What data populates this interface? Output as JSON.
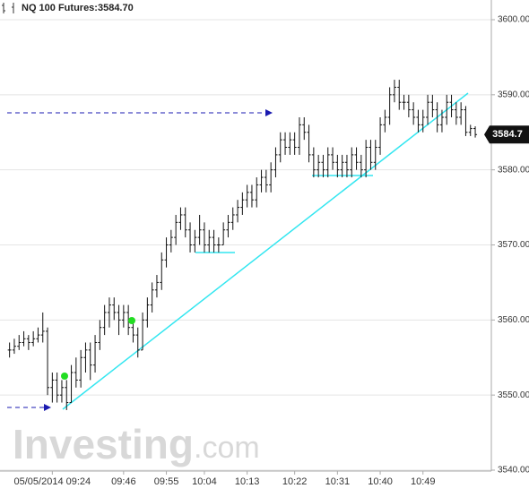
{
  "chart_data": {
    "type": "ohlc",
    "title": "NQ 100 Futures:3584.70",
    "last_price": 3584.7,
    "watermark": [
      "Investing",
      ".com"
    ],
    "categories": [
      null,
      null,
      null,
      null,
      null,
      null,
      null,
      null,
      null,
      "05/05/2014 09:24",
      null,
      null,
      null,
      null,
      null,
      null,
      null,
      null,
      null,
      null,
      null,
      null,
      null,
      null,
      "09:46",
      null,
      null,
      null,
      null,
      null,
      null,
      null,
      null,
      "09:55",
      null,
      null,
      null,
      null,
      null,
      null,
      null,
      "10:04",
      null,
      null,
      null,
      null,
      null,
      null,
      null,
      null,
      "10:13",
      null,
      null,
      null,
      null,
      null,
      null,
      null,
      null,
      null,
      "10:22",
      null,
      null,
      null,
      null,
      null,
      null,
      null,
      null,
      "10:31",
      null,
      null,
      null,
      null,
      null,
      null,
      null,
      null,
      "10:40",
      null,
      null,
      null,
      null,
      null,
      null,
      null,
      null,
      "10:49",
      null,
      null,
      null,
      null,
      null,
      null,
      null,
      null,
      null,
      null,
      null
    ],
    "open": [
      3556,
      3556,
      3556.5,
      3557,
      3557.5,
      3557,
      3557.5,
      3558,
      3558.5,
      3551,
      3552,
      3550,
      3551,
      3549,
      3553,
      3552,
      3555,
      3556,
      3554,
      3557,
      3559,
      3561,
      3562,
      3561,
      3560,
      3561,
      3559,
      3558,
      3556,
      3560,
      3562,
      3564,
      3565,
      3568,
      3570,
      3571,
      3573,
      3574,
      3572,
      3570,
      3571,
      3572,
      3570,
      3571,
      3570,
      3570,
      3572,
      3573,
      3574,
      3575,
      3576,
      3577,
      3576,
      3578,
      3579,
      3578,
      3580,
      3582,
      3584,
      3583,
      3584,
      3583,
      3586,
      3585,
      3582,
      3580,
      3581,
      3580,
      3582,
      3581,
      3580,
      3581,
      3580,
      3582,
      3581,
      3580,
      3583,
      3581,
      3583,
      3586,
      3587,
      3590,
      3591,
      3589,
      3589,
      3588,
      3587,
      3586,
      3587,
      3589,
      3588,
      3586,
      3587,
      3589,
      3588,
      3587,
      3588,
      3585,
      3585.5
    ],
    "high": [
      3557,
      3557.5,
      3558,
      3558.5,
      3558,
      3558.5,
      3559,
      3561,
      3559,
      3553,
      3553,
      3552,
      3552,
      3554,
      3555,
      3556,
      3557,
      3557,
      3558,
      3560,
      3562,
      3563,
      3563,
      3562,
      3562,
      3562,
      3560,
      3559,
      3561,
      3563,
      3565,
      3566,
      3569,
      3571,
      3572,
      3574,
      3575,
      3575,
      3573,
      3572,
      3574,
      3573,
      3572,
      3572,
      3571,
      3573,
      3574,
      3575,
      3576,
      3577,
      3578,
      3578,
      3579,
      3580,
      3580,
      3581,
      3583,
      3585,
      3585,
      3585,
      3585,
      3587,
      3587,
      3586,
      3583,
      3582,
      3582,
      3583,
      3583,
      3582,
      3582,
      3582,
      3583,
      3583,
      3582,
      3584,
      3584,
      3584,
      3587,
      3588,
      3591,
      3592,
      3592,
      3590,
      3590,
      3589,
      3588,
      3588,
      3590,
      3590,
      3589,
      3588,
      3590,
      3590,
      3589,
      3589,
      3588.5,
      3586,
      3585.8
    ],
    "low": [
      3555,
      3555.5,
      3556,
      3556.5,
      3556,
      3556.5,
      3557,
      3557,
      3550,
      3549,
      3549,
      3549,
      3548,
      3549,
      3551,
      3551,
      3553,
      3552,
      3553,
      3556,
      3558,
      3559,
      3560,
      3558,
      3559,
      3558,
      3557,
      3555,
      3556,
      3559,
      3561,
      3563,
      3564,
      3567,
      3569,
      3570,
      3572,
      3571,
      3569,
      3569,
      3570,
      3569,
      3569,
      3569,
      3569,
      3570,
      3571,
      3572,
      3573,
      3574,
      3575,
      3575,
      3575,
      3577,
      3577,
      3577,
      3579,
      3581,
      3582,
      3582,
      3582,
      3582,
      3584,
      3581,
      3579,
      3579,
      3579,
      3579,
      3580,
      3579,
      3579,
      3579,
      3579,
      3580,
      3579,
      3579,
      3580,
      3580,
      3582,
      3585,
      3586,
      3589,
      3588,
      3588,
      3587,
      3586,
      3585,
      3585,
      3586,
      3587,
      3585,
      3585,
      3586,
      3587,
      3586,
      3586,
      3584.5,
      3584.5,
      3584.3
    ],
    "close": [
      3556,
      3556.5,
      3557,
      3557.5,
      3557,
      3557.5,
      3558,
      3558.5,
      3551,
      3552,
      3550,
      3551,
      3549,
      3553,
      3552,
      3555,
      3556,
      3554,
      3557,
      3559,
      3561,
      3562,
      3561,
      3560,
      3561,
      3559,
      3558,
      3556,
      3560,
      3562,
      3564,
      3565,
      3568,
      3570,
      3571,
      3573,
      3574,
      3572,
      3570,
      3571,
      3572,
      3570,
      3571,
      3570,
      3570,
      3572,
      3573,
      3574,
      3575,
      3576,
      3577,
      3576,
      3578,
      3579,
      3578,
      3580,
      3582,
      3584,
      3583,
      3584,
      3583,
      3586,
      3585,
      3582,
      3580,
      3581,
      3580,
      3582,
      3581,
      3580,
      3581,
      3580,
      3582,
      3581,
      3580,
      3583,
      3581,
      3583,
      3586,
      3587,
      3590,
      3591,
      3589,
      3589,
      3588,
      3587,
      3586,
      3587,
      3589,
      3588,
      3586,
      3587,
      3589,
      3588,
      3587,
      3588,
      3585,
      3585.5,
      3584.7
    ],
    "color": "#111111",
    "ylim": [
      3540,
      3600
    ],
    "yticks": [
      {
        "value": 3540,
        "label": "3540.00"
      },
      {
        "value": 3550,
        "label": "3550.00"
      },
      {
        "value": 3560,
        "label": "3560.00"
      },
      {
        "value": 3570,
        "label": "3570.00"
      },
      {
        "value": 3580,
        "label": "3580.00"
      },
      {
        "value": 3590,
        "label": "3590.00"
      },
      {
        "value": 3600,
        "label": "3600.00"
      }
    ],
    "grid": true
  }
}
